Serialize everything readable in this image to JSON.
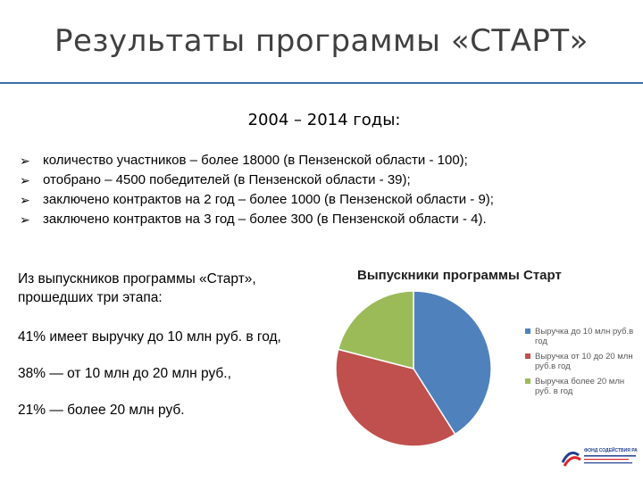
{
  "slide": {
    "title": "Результаты программы «СТАРТ»",
    "period": "2004 – 2014  годы:",
    "bullet_marker": "➢",
    "bullets": [
      "количество участников – более 18000 (в Пензенской области - 100);",
      "отобрано –  4500 победителей (в Пензенской области - 39);",
      "заключено контрактов на 2 год  – более 1000 (в Пензенской области - 9);",
      "заключено контрактов на 3 год  – более 300 (в Пензенской области - 4)."
    ],
    "intro": "Из  выпускников программы «Старт»,\nпрошедших три этапа:",
    "stats": [
      "41% имеет выручку до 10 млн руб. в год,",
      "38% — от 10 млн до 20 млн руб.,",
      "21% — более 20 млн руб."
    ]
  },
  "chart_data": {
    "type": "pie",
    "title": "Выпускники программы Старт",
    "categories": [
      "Выручка до 10 млн руб.в год",
      "Выручка от 10 до 20 млн руб.в год",
      "Выручка более 20 млн руб. в год"
    ],
    "values": [
      41,
      38,
      21
    ],
    "colors": [
      "#4f81bd",
      "#c0504d",
      "#9bbb59"
    ],
    "legend": "right"
  },
  "logo": {
    "text": "ФОНД СОДЕЙСТВИЯ РАЗВИТИЮ",
    "colors": [
      "#1f3f8f",
      "#d9262b"
    ]
  }
}
